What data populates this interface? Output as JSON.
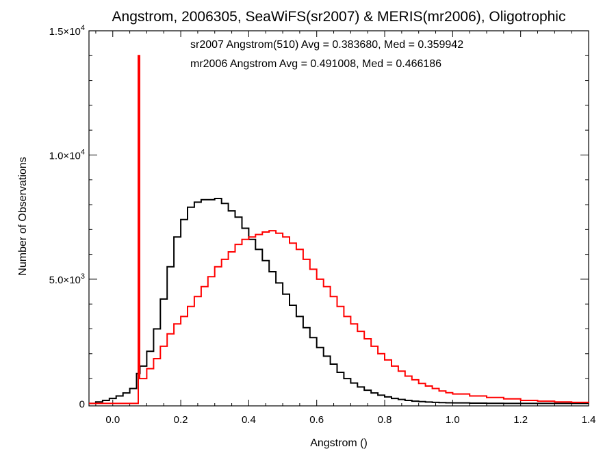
{
  "chart_data": {
    "type": "line",
    "title": "Angstrom, 2006305, SeaWiFS(sr2007) & MERIS(mr2006), Oligotrophic",
    "xlabel": "Angstrom ()",
    "ylabel": "Number of Observations",
    "xlim": [
      -0.07,
      1.4
    ],
    "ylim": [
      -100,
      15000
    ],
    "x_ticks": [
      {
        "value": 0.0,
        "label": "0.0"
      },
      {
        "value": 0.2,
        "label": "0.2"
      },
      {
        "value": 0.4,
        "label": "0.4"
      },
      {
        "value": 0.6,
        "label": "0.6"
      },
      {
        "value": 0.8,
        "label": "0.8"
      },
      {
        "value": 1.0,
        "label": "1.0"
      },
      {
        "value": 1.2,
        "label": "1.2"
      },
      {
        "value": 1.4,
        "label": "1.4"
      }
    ],
    "y_ticks": [
      {
        "value": 0,
        "mantissa": "0",
        "exponent": ""
      },
      {
        "value": 5000,
        "mantissa": "5.0×10",
        "exponent": "3"
      },
      {
        "value": 10000,
        "mantissa": "1.0×10",
        "exponent": "4"
      },
      {
        "value": 15000,
        "mantissa": "1.5×10",
        "exponent": "4"
      }
    ],
    "annotations": [
      {
        "text": "sr2007 Angstrom(510) Avg = 0.383680, Med = 0.359942",
        "color": "#000000"
      },
      {
        "text": "mr2006 Angstrom Avg = 0.491008, Med = 0.466186",
        "color": "#ff0000"
      }
    ],
    "series": [
      {
        "color": "#000000",
        "x": [
          -0.07,
          -0.05,
          -0.03,
          -0.01,
          0.01,
          0.03,
          0.05,
          0.07,
          0.08,
          0.1,
          0.12,
          0.14,
          0.16,
          0.18,
          0.2,
          0.22,
          0.24,
          0.26,
          0.28,
          0.3,
          0.32,
          0.34,
          0.36,
          0.38,
          0.4,
          0.42,
          0.44,
          0.46,
          0.48,
          0.5,
          0.52,
          0.54,
          0.56,
          0.58,
          0.6,
          0.62,
          0.64,
          0.66,
          0.68,
          0.7,
          0.72,
          0.74,
          0.76,
          0.78,
          0.8,
          0.82,
          0.84,
          0.86,
          0.88,
          0.9,
          0.92,
          0.94,
          0.96,
          0.98,
          1.0,
          1.05,
          1.1,
          1.15,
          1.2,
          1.3,
          1.4
        ],
        "y": [
          0,
          60,
          120,
          200,
          300,
          420,
          600,
          1200,
          1500,
          2100,
          3000,
          4200,
          5500,
          6700,
          7400,
          7900,
          8100,
          8200,
          8200,
          8250,
          8050,
          7750,
          7500,
          7050,
          6600,
          6200,
          5750,
          5300,
          4850,
          4400,
          3950,
          3500,
          3050,
          2650,
          2250,
          1900,
          1580,
          1250,
          1000,
          820,
          660,
          530,
          420,
          330,
          260,
          200,
          160,
          120,
          90,
          70,
          55,
          40,
          30,
          25,
          20,
          10,
          5,
          0,
          0,
          0,
          0
        ]
      },
      {
        "color": "#ff0000",
        "x": [
          -0.07,
          -0.02,
          0.02,
          0.075,
          0.075,
          0.079,
          0.079,
          0.1,
          0.12,
          0.14,
          0.16,
          0.18,
          0.2,
          0.22,
          0.24,
          0.26,
          0.28,
          0.3,
          0.32,
          0.34,
          0.36,
          0.38,
          0.4,
          0.42,
          0.44,
          0.46,
          0.48,
          0.5,
          0.52,
          0.54,
          0.56,
          0.58,
          0.6,
          0.62,
          0.64,
          0.66,
          0.68,
          0.7,
          0.72,
          0.74,
          0.76,
          0.78,
          0.8,
          0.82,
          0.84,
          0.86,
          0.88,
          0.9,
          0.92,
          0.94,
          0.96,
          0.98,
          1.0,
          1.05,
          1.1,
          1.15,
          1.2,
          1.25,
          1.3,
          1.35,
          1.4
        ],
        "y": [
          0,
          0,
          0,
          0,
          14000,
          14000,
          1000,
          1400,
          1800,
          2300,
          2800,
          3200,
          3500,
          3900,
          4300,
          4700,
          5100,
          5500,
          5800,
          6100,
          6400,
          6600,
          6700,
          6800,
          6900,
          6950,
          6850,
          6700,
          6450,
          6200,
          5800,
          5400,
          5000,
          4700,
          4300,
          3900,
          3500,
          3200,
          2900,
          2600,
          2300,
          2000,
          1750,
          1500,
          1300,
          1100,
          950,
          800,
          700,
          600,
          500,
          430,
          380,
          300,
          240,
          180,
          120,
          90,
          60,
          40,
          20
        ]
      }
    ]
  }
}
